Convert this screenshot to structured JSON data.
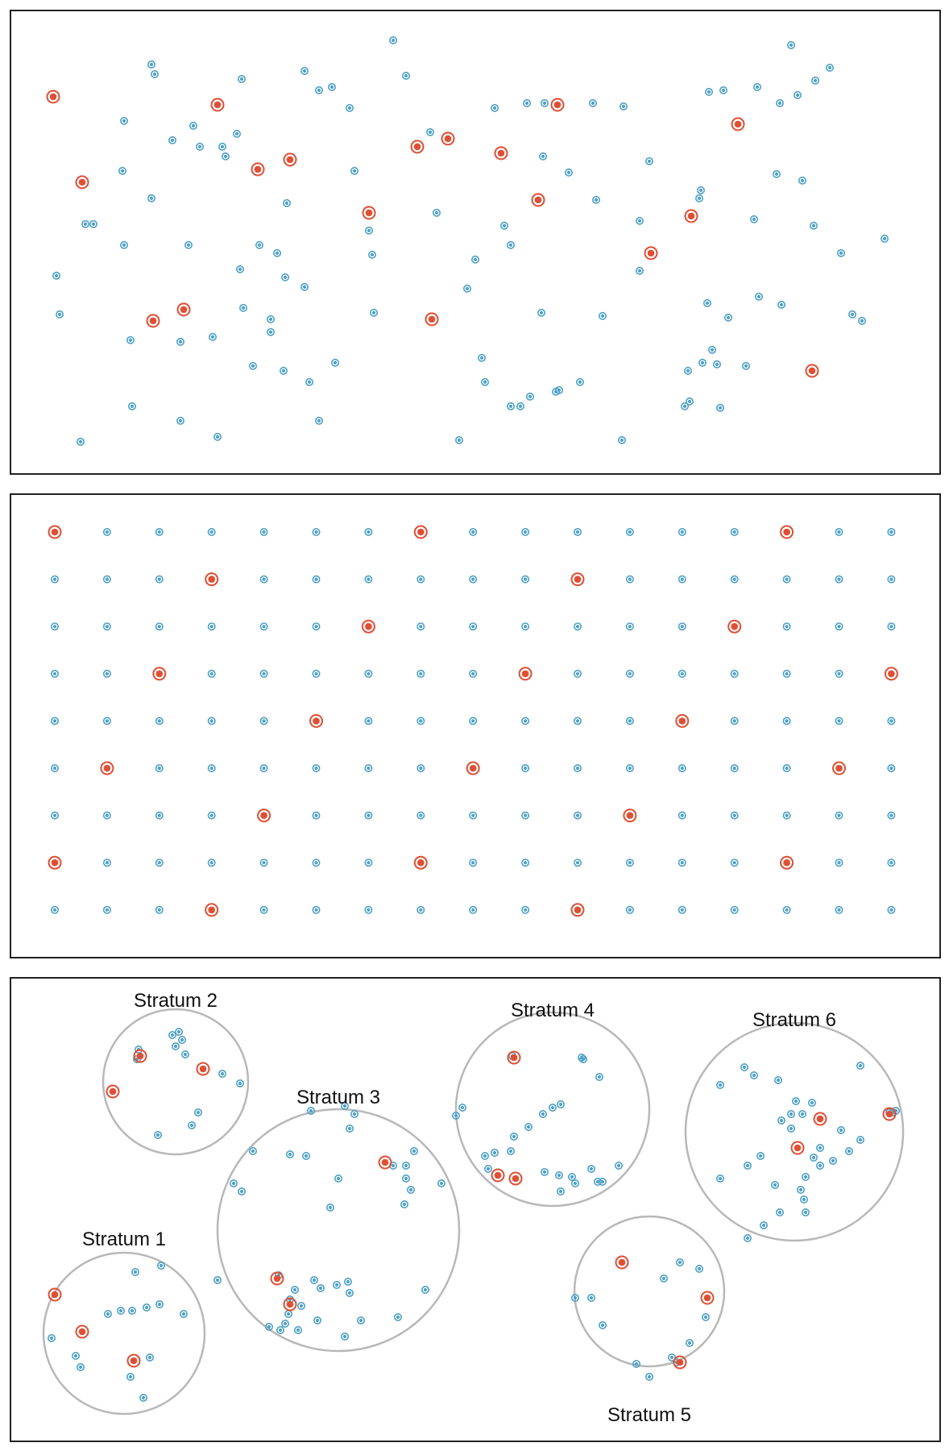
{
  "colors": {
    "population": "#4da0c6",
    "sampled": "#e04e33",
    "stratum_border": "#b8b8b8",
    "panel_border": "#222222"
  },
  "panel1": {
    "name": "simple-random-sample",
    "population_count": 118,
    "sample_count": 18
  },
  "panel2": {
    "name": "systematic-sample-grid",
    "columns": 17,
    "rows": 9,
    "sampled_cells": [
      [
        0,
        0
      ],
      [
        0,
        7
      ],
      [
        0,
        14
      ],
      [
        1,
        3
      ],
      [
        1,
        10
      ],
      [
        2,
        6
      ],
      [
        2,
        13
      ],
      [
        3,
        2
      ],
      [
        3,
        9
      ],
      [
        3,
        16
      ],
      [
        4,
        5
      ],
      [
        4,
        12
      ],
      [
        5,
        1
      ],
      [
        5,
        8
      ],
      [
        5,
        15
      ],
      [
        6,
        4
      ],
      [
        6,
        11
      ],
      [
        7,
        0
      ],
      [
        7,
        7
      ],
      [
        7,
        14
      ],
      [
        8,
        3
      ],
      [
        8,
        10
      ]
    ]
  },
  "panel3": {
    "name": "stratified-sample",
    "strata": [
      {
        "label": "Stratum 1",
        "sample_count": 3,
        "population_count": 16
      },
      {
        "label": "Stratum 2",
        "sample_count": 3,
        "population_count": 12
      },
      {
        "label": "Stratum 3",
        "sample_count": 3,
        "population_count": 40
      },
      {
        "label": "Stratum 4",
        "sample_count": 3,
        "population_count": 26
      },
      {
        "label": "Stratum 5",
        "sample_count": 3,
        "population_count": 13
      },
      {
        "label": "Stratum 6",
        "sample_count": 3,
        "population_count": 35
      }
    ]
  }
}
